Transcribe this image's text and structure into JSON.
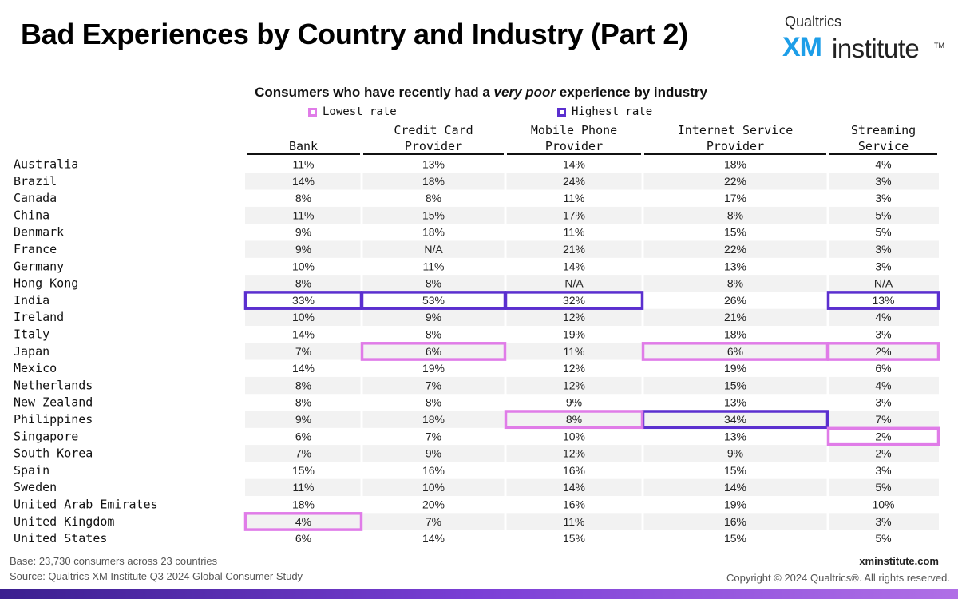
{
  "title": "Bad Experiences by Country and Industry (Part 2)",
  "logo": {
    "brand": "Qualtrics",
    "xm": "XM",
    "institute": "institute",
    "tm": "TM"
  },
  "colors": {
    "lowest": "#e07ce8",
    "highest": "#5b2fcf",
    "stripe": "#f2f2f2",
    "rule": "#111111"
  },
  "chart_data": {
    "type": "table",
    "subtitle_pre": "Consumers who have recently had a ",
    "subtitle_em": "very poor",
    "subtitle_post": " experience by industry",
    "legend": [
      {
        "label": "Lowest rate",
        "color": "#e07ce8"
      },
      {
        "label": "Highest rate",
        "color": "#5b2fcf"
      }
    ],
    "columns": [
      [
        "Bank"
      ],
      [
        "Credit Card",
        "Provider"
      ],
      [
        "Mobile Phone",
        "Provider"
      ],
      [
        "Internet Service",
        "Provider"
      ],
      [
        "Streaming",
        "Service"
      ]
    ],
    "rows": [
      {
        "country": "Australia",
        "values": [
          "11%",
          "13%",
          "14%",
          "18%",
          "4%"
        ]
      },
      {
        "country": "Brazil",
        "values": [
          "14%",
          "18%",
          "24%",
          "22%",
          "3%"
        ]
      },
      {
        "country": "Canada",
        "values": [
          "8%",
          "8%",
          "11%",
          "17%",
          "3%"
        ]
      },
      {
        "country": "China",
        "values": [
          "11%",
          "15%",
          "17%",
          "8%",
          "5%"
        ]
      },
      {
        "country": "Denmark",
        "values": [
          "9%",
          "18%",
          "11%",
          "15%",
          "5%"
        ]
      },
      {
        "country": "France",
        "values": [
          "9%",
          "N/A",
          "21%",
          "22%",
          "3%"
        ]
      },
      {
        "country": "Germany",
        "values": [
          "10%",
          "11%",
          "14%",
          "13%",
          "3%"
        ]
      },
      {
        "country": "Hong Kong",
        "values": [
          "8%",
          "8%",
          "N/A",
          "8%",
          "N/A"
        ]
      },
      {
        "country": "India",
        "values": [
          "33%",
          "53%",
          "32%",
          "26%",
          "13%"
        ]
      },
      {
        "country": "Ireland",
        "values": [
          "10%",
          "9%",
          "12%",
          "21%",
          "4%"
        ]
      },
      {
        "country": "Italy",
        "values": [
          "14%",
          "8%",
          "19%",
          "18%",
          "3%"
        ]
      },
      {
        "country": "Japan",
        "values": [
          "7%",
          "6%",
          "11%",
          "6%",
          "2%"
        ]
      },
      {
        "country": "Mexico",
        "values": [
          "14%",
          "19%",
          "12%",
          "19%",
          "6%"
        ]
      },
      {
        "country": "Netherlands",
        "values": [
          "8%",
          "7%",
          "12%",
          "15%",
          "4%"
        ]
      },
      {
        "country": "New Zealand",
        "values": [
          "8%",
          "8%",
          "9%",
          "13%",
          "3%"
        ]
      },
      {
        "country": "Philippines",
        "values": [
          "9%",
          "18%",
          "8%",
          "34%",
          "7%"
        ]
      },
      {
        "country": "Singapore",
        "values": [
          "6%",
          "7%",
          "10%",
          "13%",
          "2%"
        ]
      },
      {
        "country": "South Korea",
        "values": [
          "7%",
          "9%",
          "12%",
          "9%",
          "2%"
        ]
      },
      {
        "country": "Spain",
        "values": [
          "15%",
          "16%",
          "16%",
          "15%",
          "3%"
        ]
      },
      {
        "country": "Sweden",
        "values": [
          "11%",
          "10%",
          "14%",
          "14%",
          "5%"
        ]
      },
      {
        "country": "United Arab Emirates",
        "values": [
          "18%",
          "20%",
          "16%",
          "19%",
          "10%"
        ]
      },
      {
        "country": "United Kingdom",
        "values": [
          "4%",
          "7%",
          "11%",
          "16%",
          "3%"
        ]
      },
      {
        "country": "United States",
        "values": [
          "6%",
          "14%",
          "15%",
          "15%",
          "5%"
        ]
      }
    ],
    "highlights": [
      {
        "row": "India",
        "col": 0,
        "kind": "highest"
      },
      {
        "row": "India",
        "col": 1,
        "kind": "highest"
      },
      {
        "row": "India",
        "col": 2,
        "kind": "highest"
      },
      {
        "row": "India",
        "col": 4,
        "kind": "highest"
      },
      {
        "row": "Philippines",
        "col": 3,
        "kind": "highest"
      },
      {
        "row": "Japan",
        "col": 1,
        "kind": "lowest"
      },
      {
        "row": "Japan",
        "col": 3,
        "kind": "lowest"
      },
      {
        "row": "Japan",
        "col": 4,
        "kind": "lowest"
      },
      {
        "row": "Philippines",
        "col": 2,
        "kind": "lowest"
      },
      {
        "row": "Singapore",
        "col": 4,
        "kind": "lowest"
      },
      {
        "row": "United Kingdom",
        "col": 0,
        "kind": "lowest"
      }
    ]
  },
  "footer": {
    "base": "Base: 23,730 consumers across 23 countries",
    "source": "Source: Qualtrics XM Institute Q3 2024 Global Consumer Study",
    "website": "xminstitute.com",
    "copyright": "Copyright © 2024 Qualtrics®. All rights reserved."
  }
}
